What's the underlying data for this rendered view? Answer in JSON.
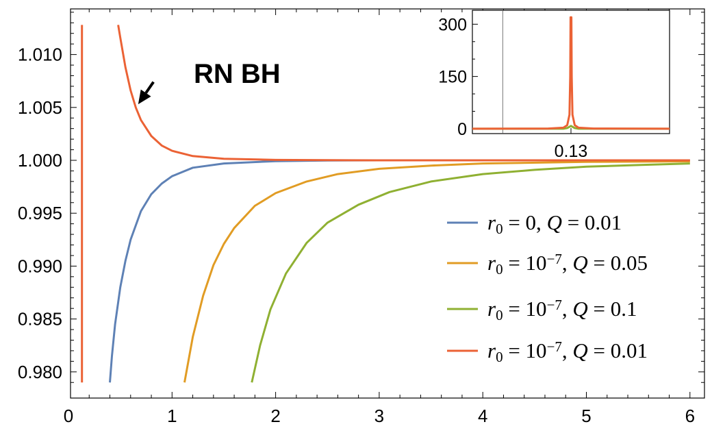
{
  "chart_data": [
    {
      "type": "line",
      "x_range": [
        0,
        6
      ],
      "y_range": [
        0.9785,
        1.0135
      ],
      "x_ticks": [
        "0",
        "1",
        "2",
        "3",
        "4",
        "5",
        "6"
      ],
      "y_ticks": [
        "0.980",
        "0.985",
        "0.990",
        "0.995",
        "1.000",
        "1.005",
        "1.010"
      ],
      "grid": false,
      "legend_placement": "bottom-right",
      "series": [
        {
          "name": "r0 = 0, Q = 0.01",
          "legend_parts": [
            {
              "t": "r",
              "i": true
            },
            {
              "t": "0",
              "sub": true
            },
            {
              "t": " = 0, "
            },
            {
              "t": "Q",
              "i": true
            },
            {
              "t": " = 0.01"
            }
          ],
          "color": "#5E81B5",
          "points": [
            [
              0.4,
              0.979
            ],
            [
              0.42,
              0.9815
            ],
            [
              0.45,
              0.9845
            ],
            [
              0.5,
              0.988
            ],
            [
              0.55,
              0.9905
            ],
            [
              0.6,
              0.9925
            ],
            [
              0.7,
              0.9952
            ],
            [
              0.8,
              0.9968
            ],
            [
              0.9,
              0.9978
            ],
            [
              1.0,
              0.9985
            ],
            [
              1.2,
              0.9993
            ],
            [
              1.5,
              0.9997
            ],
            [
              2.0,
              0.99992
            ],
            [
              2.5,
              0.99998
            ],
            [
              3.0,
              1.0
            ],
            [
              4.0,
              1.0
            ],
            [
              5.0,
              1.0
            ],
            [
              6.0,
              1.0
            ]
          ]
        },
        {
          "name": "r0 = 10^-7, Q = 0.05",
          "legend_parts": [
            {
              "t": "r",
              "i": true
            },
            {
              "t": "0",
              "sub": true
            },
            {
              "t": " = 10"
            },
            {
              "t": "−7",
              "sup": true
            },
            {
              "t": ", "
            },
            {
              "t": "Q",
              "i": true
            },
            {
              "t": " = 0.05"
            }
          ],
          "color": "#E19C24",
          "points": [
            [
              1.12,
              0.979
            ],
            [
              1.2,
              0.9833
            ],
            [
              1.3,
              0.9872
            ],
            [
              1.4,
              0.9901
            ],
            [
              1.5,
              0.9921
            ],
            [
              1.6,
              0.9936
            ],
            [
              1.8,
              0.9957
            ],
            [
              2.0,
              0.9969
            ],
            [
              2.3,
              0.998
            ],
            [
              2.6,
              0.9987
            ],
            [
              3.0,
              0.9992
            ],
            [
              3.5,
              0.9995
            ],
            [
              4.0,
              0.9997
            ],
            [
              5.0,
              0.99985
            ],
            [
              6.0,
              0.9999
            ]
          ]
        },
        {
          "name": "r0 = 10^-7, Q = 0.1",
          "legend_parts": [
            {
              "t": "r",
              "i": true
            },
            {
              "t": "0",
              "sub": true
            },
            {
              "t": " = 10"
            },
            {
              "t": "−7",
              "sup": true
            },
            {
              "t": ", "
            },
            {
              "t": "Q",
              "i": true
            },
            {
              "t": " = 0.1"
            }
          ],
          "color": "#8FB032",
          "points": [
            [
              1.77,
              0.979
            ],
            [
              1.85,
              0.9825
            ],
            [
              1.95,
              0.9859
            ],
            [
              2.1,
              0.9893
            ],
            [
              2.3,
              0.9922
            ],
            [
              2.5,
              0.9941
            ],
            [
              2.8,
              0.9958
            ],
            [
              3.1,
              0.997
            ],
            [
              3.5,
              0.998
            ],
            [
              4.0,
              0.9987
            ],
            [
              4.5,
              0.9991
            ],
            [
              5.0,
              0.9994
            ],
            [
              5.5,
              0.99955
            ],
            [
              6.0,
              0.9997
            ]
          ]
        },
        {
          "name": "r0 = 10^-7, Q = 0.01",
          "legend_parts": [
            {
              "t": "r",
              "i": true
            },
            {
              "t": "0",
              "sub": true
            },
            {
              "t": " = 10"
            },
            {
              "t": "−7",
              "sup": true
            },
            {
              "t": ", "
            },
            {
              "t": "Q",
              "i": true
            },
            {
              "t": " = 0.01"
            }
          ],
          "color": "#EB6235",
          "segments": [
            [
              [
                0.13,
                0.979
              ],
              [
                0.13,
                1.0128
              ]
            ],
            [
              [
                0.48,
                1.0128
              ],
              [
                0.5,
                1.0116
              ],
              [
                0.55,
                1.0088
              ],
              [
                0.6,
                1.0066
              ],
              [
                0.65,
                1.005
              ],
              [
                0.7,
                1.0038
              ],
              [
                0.8,
                1.0023
              ],
              [
                0.9,
                1.0014
              ],
              [
                1.0,
                1.0009
              ],
              [
                1.2,
                1.0004
              ],
              [
                1.5,
                1.00015
              ],
              [
                2.0,
                1.00004
              ],
              [
                3.0,
                1.0
              ],
              [
                6.0,
                1.0
              ]
            ]
          ]
        }
      ],
      "annotations": [
        {
          "text": "RN BH",
          "arrow_from": [
            0.9,
            1.0078
          ],
          "arrow_to": [
            0.66,
            1.0053
          ]
        }
      ]
    },
    {
      "type": "line",
      "role": "inset",
      "x_ticks": [
        "0.13"
      ],
      "y_ticks": [
        "0",
        "150",
        "300"
      ],
      "y_range": [
        -14,
        340
      ],
      "x_range": [
        0.0,
        0.26
      ],
      "vertical_marker_x": 0.04,
      "series": [
        {
          "color": "#8FB032",
          "points": [
            [
              0.0,
              0
            ],
            [
              0.12,
              0
            ],
            [
              0.125,
              2
            ],
            [
              0.13,
              8
            ],
            [
              0.135,
              2
            ],
            [
              0.14,
              0
            ],
            [
              0.26,
              0
            ]
          ]
        },
        {
          "color": "#EB6235",
          "points": [
            [
              0.0,
              0
            ],
            [
              0.1,
              0.5
            ],
            [
              0.12,
              3
            ],
            [
              0.125,
              10
            ],
            [
              0.128,
              40
            ],
            [
              0.129,
              150
            ],
            [
              0.1295,
              320
            ],
            [
              0.1305,
              320
            ],
            [
              0.131,
              150
            ],
            [
              0.132,
              40
            ],
            [
              0.135,
              10
            ],
            [
              0.14,
              3
            ],
            [
              0.16,
              0.5
            ],
            [
              0.26,
              0
            ]
          ]
        }
      ]
    }
  ]
}
